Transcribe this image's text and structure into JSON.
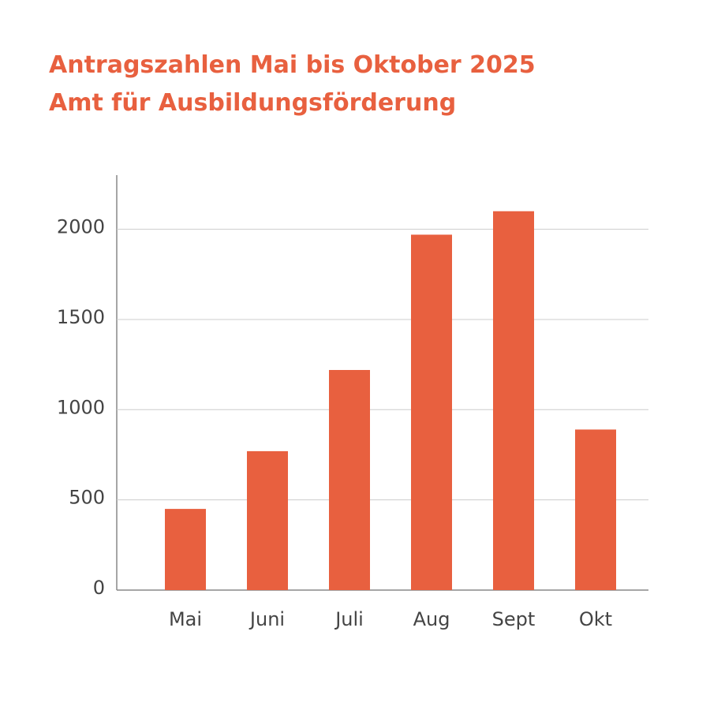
{
  "chart_data": {
    "type": "bar",
    "title": [
      "Antragszahlen Mai bis Oktober 2025",
      "Amt für Ausbildungsförderung"
    ],
    "categories": [
      "Mai",
      "Juni",
      "Juli",
      "Aug",
      "Sept",
      "Okt"
    ],
    "values": [
      450,
      770,
      1220,
      1970,
      2100,
      890
    ],
    "color": "#e8603f",
    "ylim": [
      0,
      2300
    ],
    "yticks": [
      0,
      500,
      1000,
      1500,
      2000
    ],
    "grid": true
  }
}
